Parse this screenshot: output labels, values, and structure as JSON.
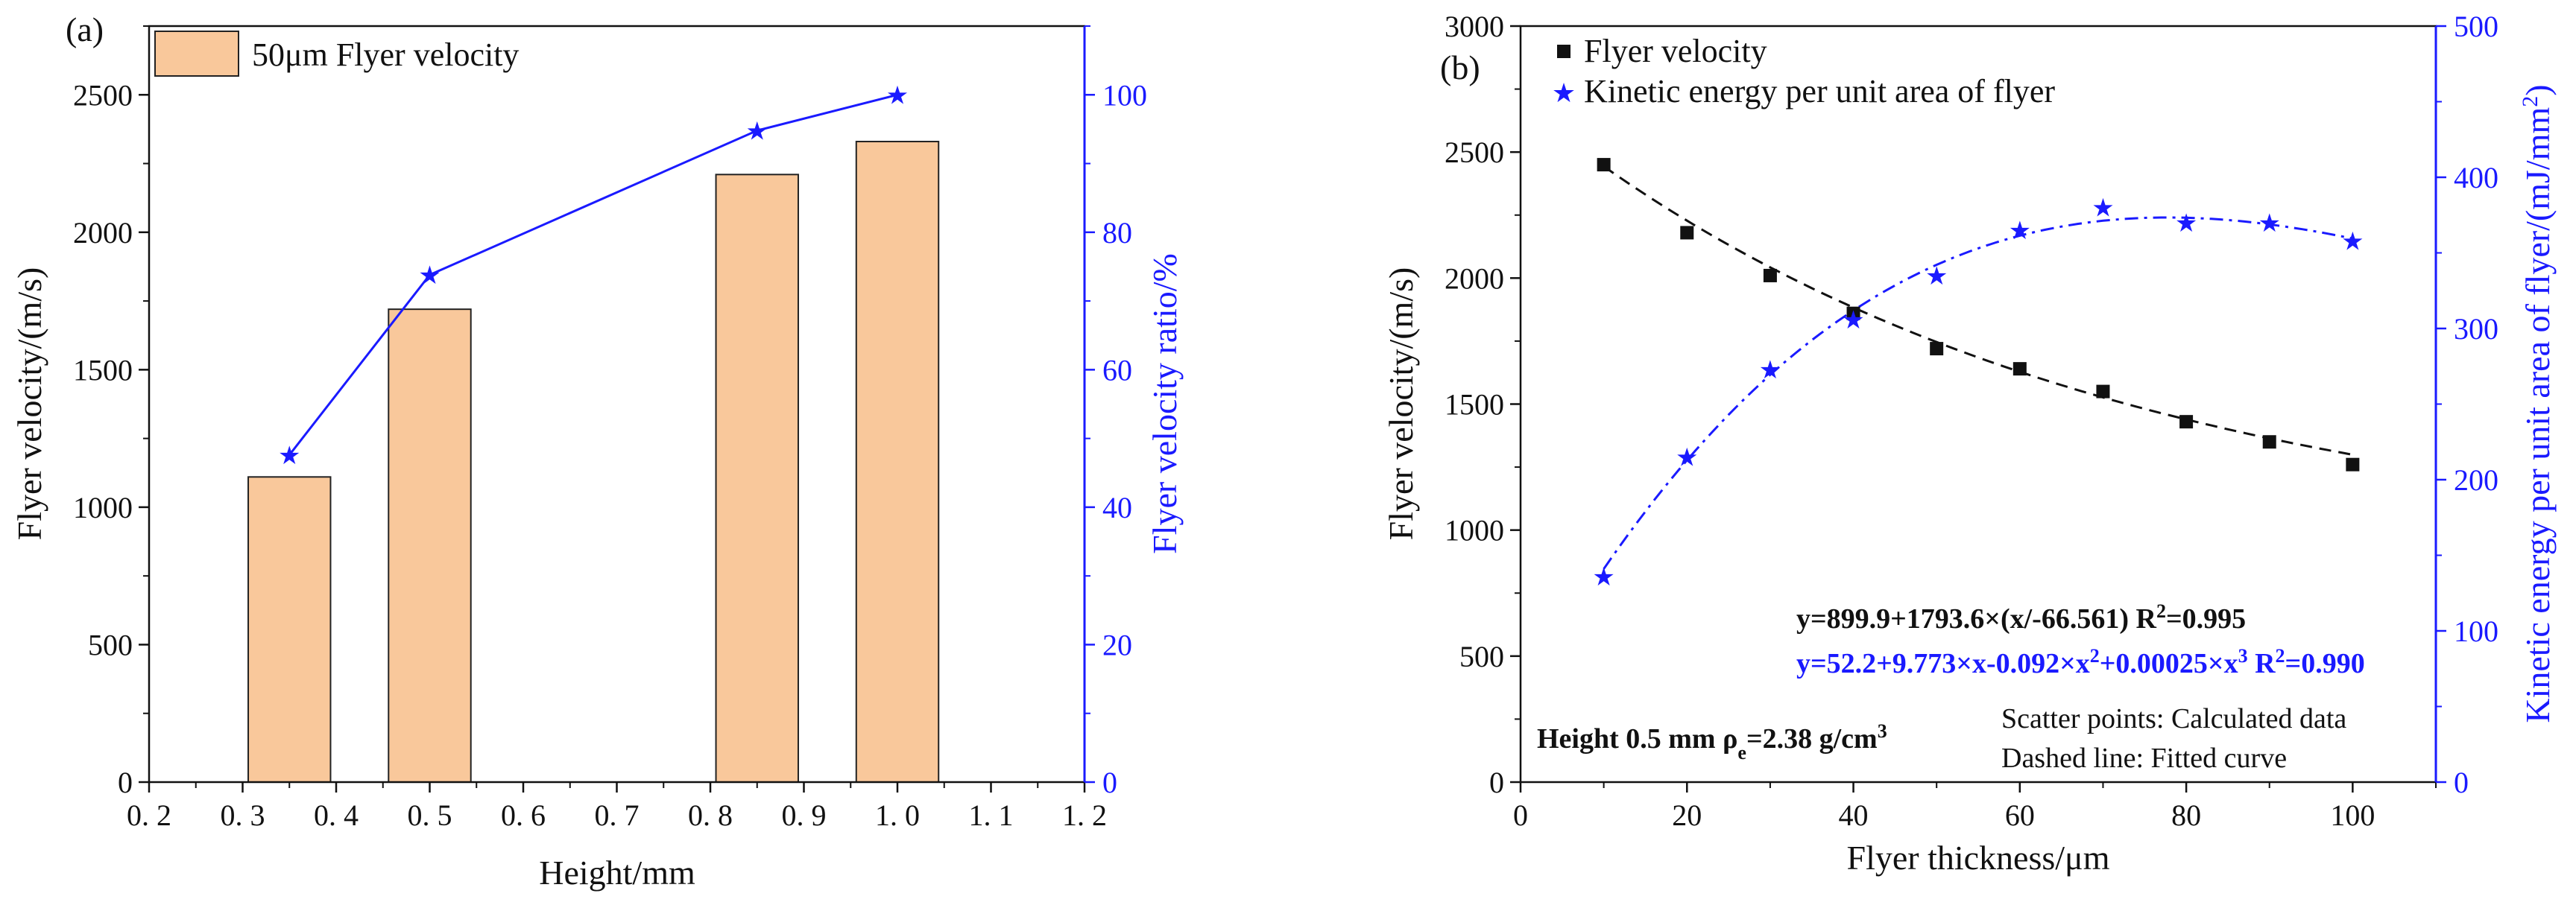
{
  "colors": {
    "bar_fill": "#f9c89b",
    "bar_stroke": "#222222",
    "black": "#111111",
    "blue": "#1a1aff"
  },
  "chart_data": [
    {
      "type": "bar",
      "panel_label": "(a)",
      "xlabel": "Height/mm",
      "ylabel": "Flyer velocity/(m/s)",
      "y2label": "Flyer velocity ratio/%",
      "xlim": [
        0.2,
        1.2
      ],
      "ylim": [
        0,
        2750
      ],
      "y2lim": [
        0,
        110
      ],
      "xticks": [
        0.2,
        0.3,
        0.4,
        0.5,
        0.6,
        0.7,
        0.8,
        0.9,
        1.0,
        1.1,
        1.2
      ],
      "xtick_labels": [
        "0. 2",
        "0. 3",
        "0. 4",
        "0. 5",
        "0. 6",
        "0. 7",
        "0. 8",
        "0. 9",
        "1. 0",
        "1. 1",
        "1. 2"
      ],
      "yticks": [
        0,
        500,
        1000,
        1500,
        2000,
        2500
      ],
      "y2ticks": [
        0,
        20,
        40,
        60,
        80,
        100
      ],
      "legend_position": "top-left",
      "bars": {
        "name": "50μm Flyer velocity",
        "x": [
          0.35,
          0.5,
          0.85,
          1.0
        ],
        "values": [
          1110,
          1720,
          2210,
          2330
        ],
        "width": 0.088
      },
      "line": {
        "axis": "right",
        "x": [
          0.35,
          0.5,
          0.85,
          1.0
        ],
        "values": [
          47.6,
          73.8,
          94.8,
          100
        ]
      }
    },
    {
      "type": "scatter",
      "panel_label": "(b)",
      "xlabel": "Flyer  thickness/μm",
      "ylabel": "Flyer velocity/(m/s)",
      "y2label": "Kinetic energy per unit area of flyer/(mJ/mm²)",
      "xlim": [
        0,
        110
      ],
      "ylim": [
        0,
        3000
      ],
      "y2lim": [
        0,
        500
      ],
      "xticks": [
        0,
        20,
        40,
        60,
        80,
        100
      ],
      "yticks": [
        0,
        500,
        1000,
        1500,
        2000,
        2500,
        3000
      ],
      "y2ticks": [
        0,
        100,
        200,
        300,
        400,
        500
      ],
      "legend_position": "top-left",
      "series": [
        {
          "name": "Flyer velocity",
          "axis": "left",
          "marker": "square",
          "x": [
            10,
            20,
            30,
            40,
            50,
            60,
            70,
            80,
            90,
            100
          ],
          "values": [
            2450,
            2180,
            2010,
            1860,
            1720,
            1640,
            1550,
            1430,
            1350,
            1260
          ]
        },
        {
          "name": "Kinetic energy per unit area of flyer",
          "axis": "right",
          "marker": "star",
          "x": [
            10,
            20,
            30,
            40,
            50,
            60,
            70,
            80,
            90,
            100
          ],
          "values": [
            136,
            215,
            273,
            306,
            335,
            365,
            380,
            370,
            370,
            358
          ]
        }
      ],
      "annotations": {
        "eq1_main": "y=899.9+1793.6×(x/-66.561) R",
        "eq1_sup": "2",
        "eq1_tail": "=0.995",
        "eq2_a": "y=52.2+9.773×x-0.092×x",
        "eq2_sup1": "2",
        "eq2_b": "+0.00025×x",
        "eq2_sup2": "3",
        "eq2_c": "  R",
        "eq2_sup3": "2",
        "eq2_d": "=0.990",
        "condition_a": "Height 0.5 mm  ρ",
        "condition_sub": "e",
        "condition_b": "=2.38 g/cm",
        "condition_sup": "3",
        "note1": "Scatter points: Calculated data",
        "note2": "Dashed line: Fitted curve"
      }
    }
  ]
}
